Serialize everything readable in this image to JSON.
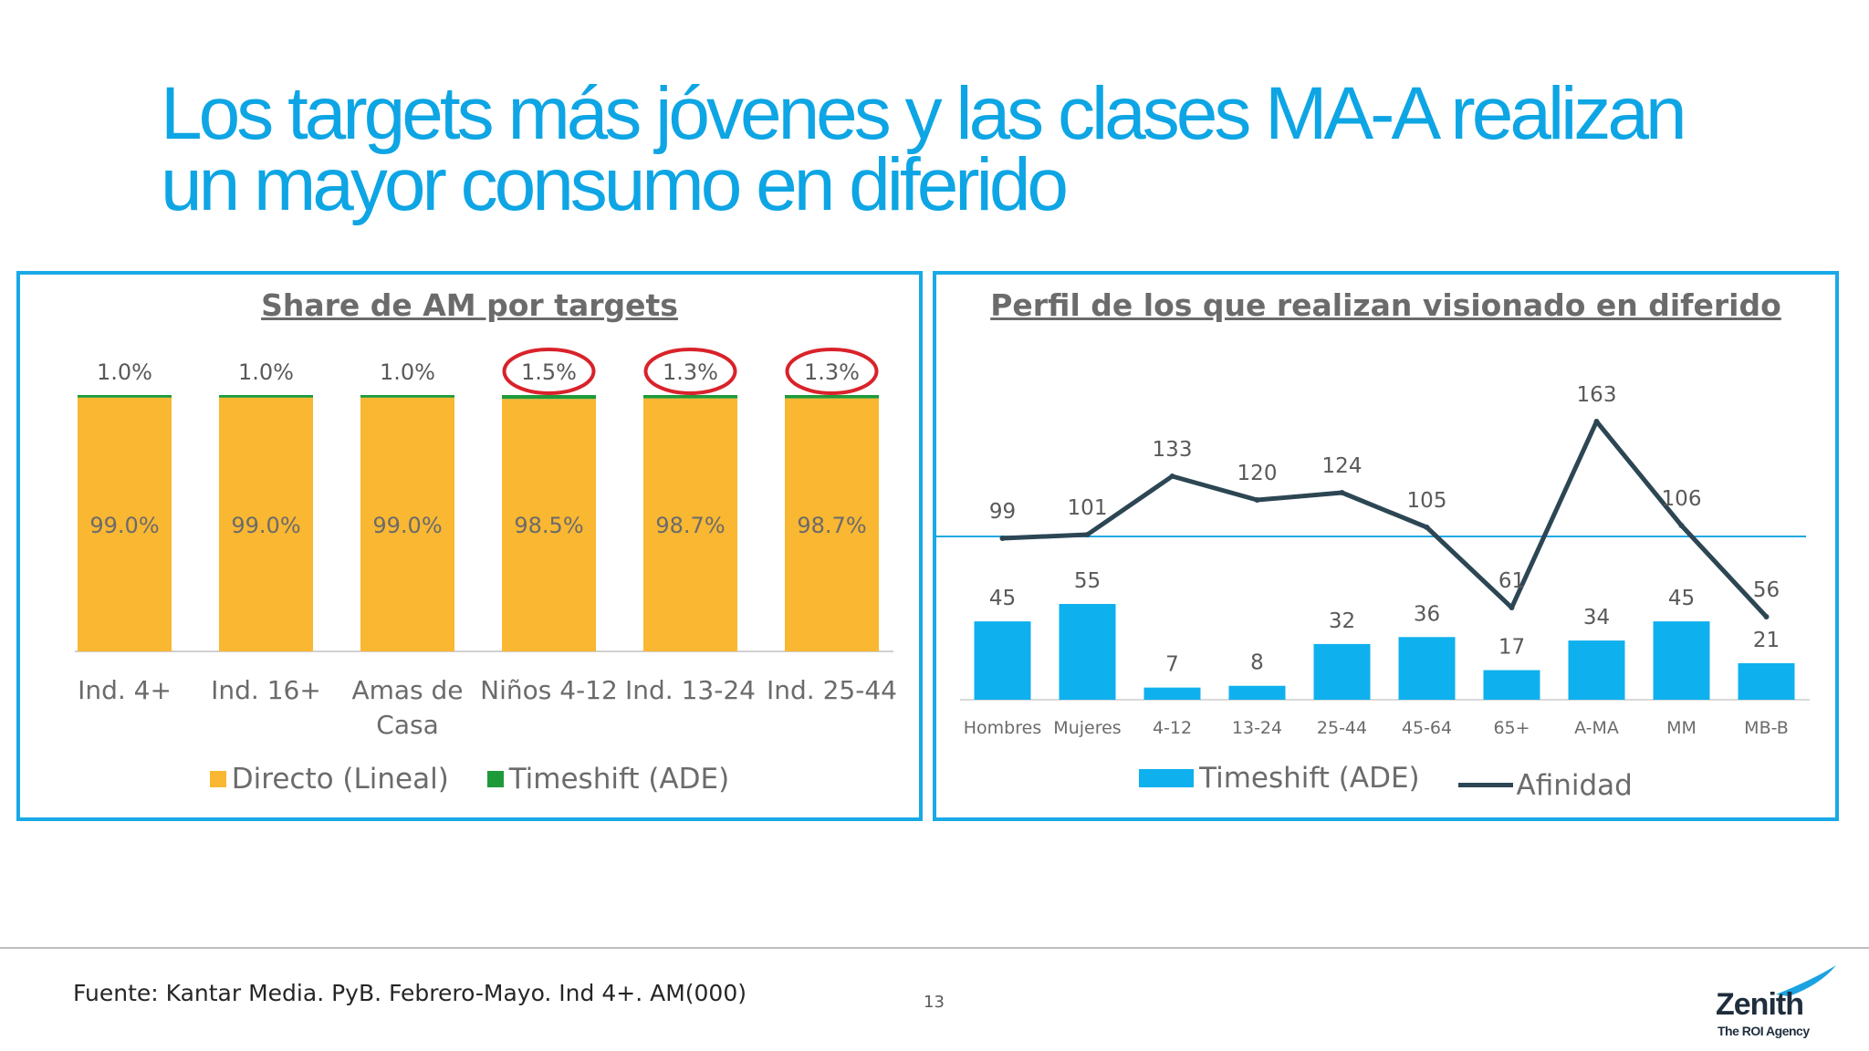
{
  "title": {
    "line1": "Los targets más jóvenes y las clases MA-A realizan",
    "line2": "un mayor consumo en diferido"
  },
  "colors": {
    "title": "#0ea5e4",
    "panel_border": "#19a9e6",
    "directo": "#f9b732",
    "timeshift_left": "#1e9a3a",
    "timeshift_right": "#0fb0ee",
    "afinidad": "#2d4654",
    "reference_line": "#21a8e3",
    "highlight_circle": "#d9222a",
    "text_grey": "#6b6b6b"
  },
  "chart_data": [
    {
      "type": "bar",
      "stacked": true,
      "title": "Share de AM por targets",
      "categories": [
        "Ind. 4+",
        "Ind. 16+",
        "Amas de Casa",
        "Niños 4-12",
        "Ind. 13-24",
        "Ind. 25-44"
      ],
      "series": [
        {
          "name": "Directo (Lineal)",
          "values": [
            99.0,
            99.0,
            99.0,
            98.5,
            98.7,
            98.7
          ],
          "labels": [
            "99.0%",
            "99.0%",
            "99.0%",
            "98.5%",
            "98.7%",
            "98.7%"
          ]
        },
        {
          "name": "Timeshift (ADE)",
          "values": [
            1.0,
            1.0,
            1.0,
            1.5,
            1.3,
            1.3
          ],
          "labels": [
            "1.0%",
            "1.0%",
            "1.0%",
            "1.5%",
            "1.3%",
            "1.3%"
          ]
        }
      ],
      "highlighted_categories": [
        "Niños 4-12",
        "Ind. 13-24",
        "Ind. 25-44"
      ],
      "ylim": [
        0,
        100
      ],
      "legend_position": "bottom",
      "grid": false
    },
    {
      "type": "bar",
      "combo": true,
      "title": "Perfil de los que realizan visionado en diferido",
      "categories": [
        "Hombres",
        "Mujeres",
        "4-12",
        "13-24",
        "25-44",
        "45-64",
        "65+",
        "A-MA",
        "MM",
        "MB-B"
      ],
      "series": [
        {
          "name": "Timeshift (ADE)",
          "type": "bar",
          "values": [
            45,
            55,
            7,
            8,
            32,
            36,
            17,
            34,
            45,
            21
          ]
        },
        {
          "name": "Afinidad",
          "type": "line",
          "values": [
            99,
            101,
            133,
            120,
            124,
            105,
            61,
            163,
            106,
            56
          ]
        }
      ],
      "reference_line": 100,
      "legend_position": "bottom",
      "grid": false
    }
  ],
  "footer": {
    "source": "Fuente: Kantar Media. PyB. Febrero-Mayo. Ind 4+. AM(000)",
    "page_number": "13",
    "logo_name": "Zenith",
    "logo_tagline": "The ROI Agency"
  }
}
